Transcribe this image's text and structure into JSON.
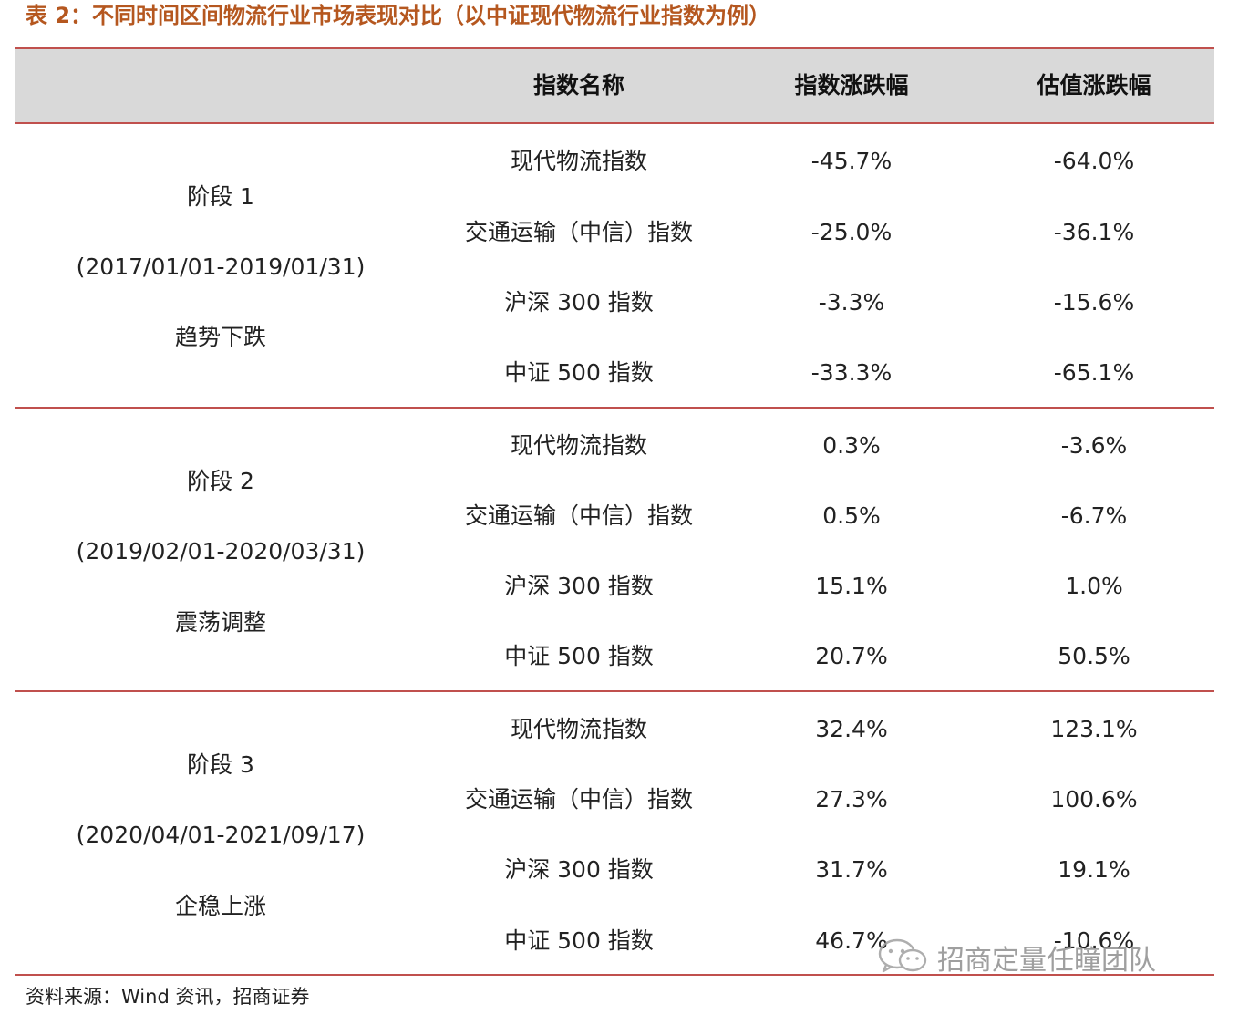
{
  "title": "表 2：不同时间区间物流行业市场表现对比（以中证现代物流行业指数为例）",
  "header": {
    "name": "指数名称",
    "return": "指数涨跌幅",
    "valuation": "估值涨跌幅"
  },
  "stages": [
    {
      "label": "阶段 1",
      "period": "(2017/01/01-2019/01/31)",
      "trend": "趋势下跌",
      "rows": [
        {
          "name": "现代物流指数",
          "return": "-45.7%",
          "valuation": "-64.0%"
        },
        {
          "name": "交通运输（中信）指数",
          "return": "-25.0%",
          "valuation": "-36.1%"
        },
        {
          "name": "沪深 300 指数",
          "return": "-3.3%",
          "valuation": "-15.6%"
        },
        {
          "name": "中证 500 指数",
          "return": "-33.3%",
          "valuation": "-65.1%"
        }
      ]
    },
    {
      "label": "阶段 2",
      "period": "(2019/02/01-2020/03/31)",
      "trend": "震荡调整",
      "rows": [
        {
          "name": "现代物流指数",
          "return": "0.3%",
          "valuation": "-3.6%"
        },
        {
          "name": "交通运输（中信）指数",
          "return": "0.5%",
          "valuation": "-6.7%"
        },
        {
          "name": "沪深 300 指数",
          "return": "15.1%",
          "valuation": "1.0%"
        },
        {
          "name": "中证 500 指数",
          "return": "20.7%",
          "valuation": "50.5%"
        }
      ]
    },
    {
      "label": "阶段 3",
      "period": "(2020/04/01-2021/09/17)",
      "trend": "企稳上涨",
      "rows": [
        {
          "name": "现代物流指数",
          "return": "32.4%",
          "valuation": "123.1%"
        },
        {
          "name": "交通运输（中信）指数",
          "return": "27.3%",
          "valuation": "100.6%"
        },
        {
          "name": "沪深 300 指数",
          "return": "31.7%",
          "valuation": "19.1%"
        },
        {
          "name": "中证 500 指数",
          "return": "46.7%",
          "valuation": "-10.6%"
        }
      ]
    }
  ],
  "source": "资料来源：Wind 资讯，招商证券",
  "watermark": "招商定量任瞳团队",
  "colors": {
    "title": "#b5571f",
    "rule": "#c0504d",
    "header_bg": "#d9d9d9"
  },
  "icons": {
    "watermark": "wechat-icon"
  }
}
